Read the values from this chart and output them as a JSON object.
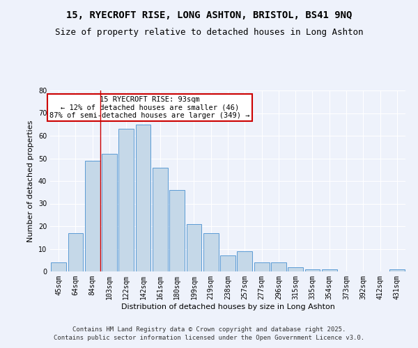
{
  "title1": "15, RYECROFT RISE, LONG ASHTON, BRISTOL, BS41 9NQ",
  "title2": "Size of property relative to detached houses in Long Ashton",
  "xlabel": "Distribution of detached houses by size in Long Ashton",
  "ylabel": "Number of detached properties",
  "categories": [
    "45sqm",
    "64sqm",
    "84sqm",
    "103sqm",
    "122sqm",
    "142sqm",
    "161sqm",
    "180sqm",
    "199sqm",
    "219sqm",
    "238sqm",
    "257sqm",
    "277sqm",
    "296sqm",
    "315sqm",
    "335sqm",
    "354sqm",
    "373sqm",
    "392sqm",
    "412sqm",
    "431sqm"
  ],
  "values": [
    4,
    17,
    49,
    52,
    63,
    65,
    46,
    36,
    21,
    17,
    7,
    9,
    4,
    4,
    2,
    1,
    1,
    0,
    0,
    0,
    1
  ],
  "bar_color": "#c5d8e8",
  "bar_edge_color": "#5b9bd5",
  "background_color": "#eef2fb",
  "grid_color": "#ffffff",
  "annotation_text": "15 RYECROFT RISE: 93sqm\n← 12% of detached houses are smaller (46)\n87% of semi-detached houses are larger (349) →",
  "annotation_box_color": "#ffffff",
  "annotation_box_edge": "#cc0000",
  "ylim": [
    0,
    80
  ],
  "yticks": [
    0,
    10,
    20,
    30,
    40,
    50,
    60,
    70,
    80
  ],
  "footer": "Contains HM Land Registry data © Crown copyright and database right 2025.\nContains public sector information licensed under the Open Government Licence v3.0.",
  "title_fontsize": 10,
  "subtitle_fontsize": 9,
  "axis_label_fontsize": 8,
  "tick_fontsize": 7,
  "annotation_fontsize": 7.5,
  "footer_fontsize": 6.5
}
